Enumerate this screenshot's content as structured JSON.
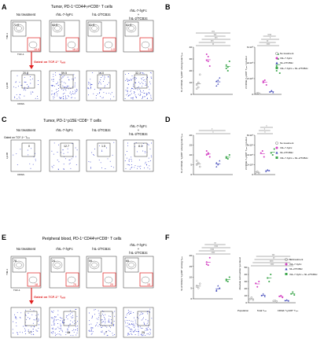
{
  "panels": {
    "A": {
      "letter": "A",
      "title": "Tumor, PD-1⁺CD44ʰᵢᵍʰCD8⁺ T cells",
      "conditions": [
        "No treatment",
        "rhIL-7-hyFc",
        "hIL-2/TCB2c",
        "rhIL-7-hyFc",
        "+",
        "hIL-2/TCB2c"
      ],
      "top_numbers": [
        {
          "tl": "71.0",
          "br": "18.6"
        },
        {
          "tl": "60.5",
          "br": "16.2"
        },
        {
          "tl": "81.5",
          "br": "1.0"
        },
        {
          "tl": "61.3",
          "br": "3.0"
        }
      ],
      "bottom_numbers": [
        "20.8",
        "59.5",
        "14.0",
        "32.1"
      ],
      "gate_text": "Gated on TCF-1⁺ Tₚₑₓ",
      "y_top": "TIM-3",
      "x_top": "TCF-1",
      "y_bottom": "Ly108",
      "x_bottom": "CD62L"
    },
    "B": {
      "letter": "B",
      "legend": [
        "No treatment",
        "rhIL-7-hyFc",
        "hIL-2/TCB2c",
        "rhIL-7-hyFc + hIL-2/TCB2c"
      ],
      "left_ylabel": "% of CD62L⁺Ly108⁺ among total Tₚₑₓ",
      "left_yticks": [
        "0",
        "10",
        "20",
        "30",
        "40"
      ],
      "right_ylabel": "# CD62L⁺Ly108⁺ Tₚₑₓ / g tumor",
      "right_yticks": [
        "0",
        "2×10⁵",
        "4×10⁵",
        "6×10⁵"
      ],
      "sig_left": [
        "**",
        "***",
        "***",
        "***",
        "***",
        "**"
      ],
      "sig_right": [
        "****",
        "**",
        "*",
        "****"
      ]
    },
    "C": {
      "letter": "C",
      "title": "Tumor, PD-1⁺p15E⁺CD8⁺ T cells",
      "gate_text": "Gated on TCF-1⁺ Tₚₑₓ",
      "conditions": [
        "No treatment",
        "rhIL-7-hyFc",
        "hIL-2/TCB2c",
        "rhIL-7-hyFc",
        "+",
        "hIL-2/TCB2c"
      ],
      "numbers": [
        "0",
        "12.7",
        "1.5",
        "8.3"
      ],
      "y_label": "Ly108",
      "x_label": "CD62L"
    },
    "D": {
      "letter": "D",
      "left_ylabel": "% of CD62L⁺Ly108⁺ among total Tₚₑₓ",
      "left_yticks": [
        "0",
        "5",
        "10",
        "15",
        "20"
      ],
      "right_ylabel": "# CD62L⁺Ly108⁺ Tₚₑₓ / g tumor",
      "right_yticks": [
        "0",
        "2×10⁴",
        "4×10⁴",
        "6×10⁴",
        "8×10⁴"
      ],
      "legend": [
        "No treatment",
        "rhIL-7-hyFc",
        "hIL-2/TCB2c",
        "rhIL-7-hyFc + hIL-2/TCB2c"
      ],
      "sig_left": [
        "*",
        "*"
      ],
      "sig_right": [
        "*",
        "*",
        "*"
      ]
    },
    "E": {
      "letter": "E",
      "title": "Peripheral blood, PD-1⁺CD44ʰᵢᵍʰCD8⁺ T cells",
      "conditions": [
        "No treatment",
        "rhIL-7-hyFc",
        "hIL-2/TCB2c",
        "rhIL-7-hyFc",
        "+",
        "hIL-2/TCB2c"
      ],
      "top_numbers": [
        {
          "tl": "78",
          "br": "18"
        },
        {
          "tl": "24",
          "br": "70"
        },
        {
          "tl": "59",
          "br": "20"
        },
        {
          "tl": "65",
          "br": "15"
        }
      ],
      "bottom_numbers": [
        "17",
        "46",
        "7",
        "29"
      ],
      "gate_text": "Gated on TCF-1⁺ Tₚₑₓ",
      "y_top": "TIM-3",
      "x_top": "TCF-1"
    },
    "F": {
      "letter": "F",
      "left_ylabel": "% of CD62L⁺Ly108⁺ among Tₚₑₓ",
      "left_yticks": [
        "0",
        "5",
        "10",
        "15",
        "20"
      ],
      "right_ylabel": "Absolute cell number /μL blood",
      "right_yticks": [
        "0",
        "10",
        "20",
        "30",
        "40",
        "50"
      ],
      "legend": [
        "No treatment",
        "rhIL-7-hyFc",
        "hIL-2/TCB2c",
        "rhIL-7-hyFc + hIL-2/TCB2c"
      ],
      "population_label": "Population",
      "categories": [
        "Total Tₚₑₓ",
        "CD62L⁺Ly108⁺ Tₚₑₓ"
      ],
      "sig_left": [
        "****",
        "****",
        "****",
        "**"
      ],
      "sig_right": [
        "****",
        "****",
        "**",
        "***",
        "***",
        "**",
        "***",
        "****"
      ]
    }
  },
  "colors": {
    "gray": "#8c8c8c",
    "pink": "#d23cc1",
    "blue": "#3d45b8",
    "green": "#3aa64a",
    "red": "#e02020",
    "dots": "#2833c9"
  }
}
